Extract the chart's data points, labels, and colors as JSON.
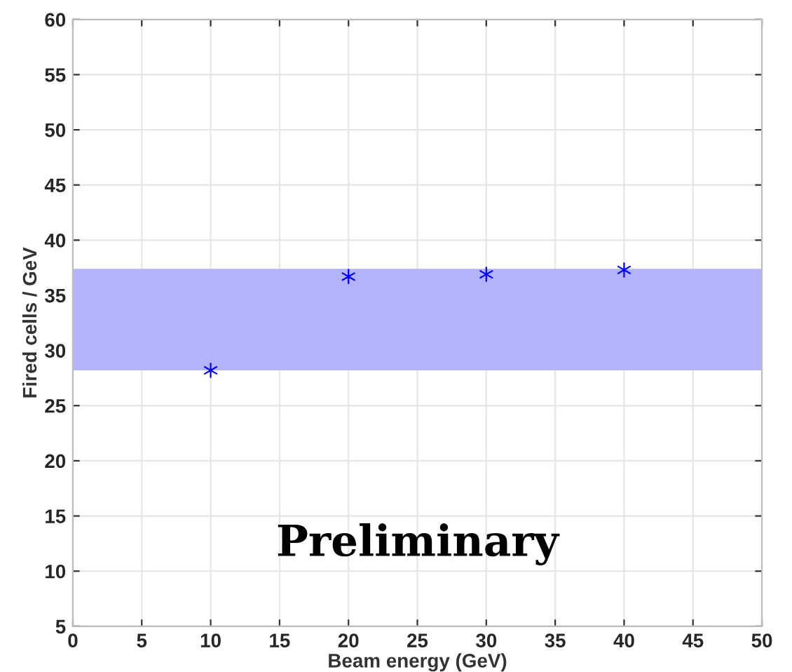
{
  "chart_data": {
    "type": "scatter",
    "xlabel": "Beam energy (GeV)",
    "ylabel": "Fired cells / GeV",
    "x": [
      10,
      20,
      30,
      40
    ],
    "series": [
      {
        "color": "#0000ff",
        "values": [
          28.2,
          36.7,
          36.9,
          37.3
        ]
      }
    ],
    "marker": "cross",
    "bands": [
      {
        "axis": "y",
        "from": 28.2,
        "to": 37.4,
        "color": "#b3b3fc"
      }
    ],
    "annotations": [
      "Preliminary"
    ],
    "xlim": [
      0,
      50
    ],
    "xticks": [
      0,
      5,
      10,
      15,
      20,
      25,
      30,
      35,
      40,
      45,
      50
    ],
    "ylim": [
      5,
      60
    ],
    "yticks": [
      5,
      10,
      15,
      20,
      25,
      30,
      35,
      40,
      45,
      50,
      55,
      60
    ],
    "grid": true
  }
}
